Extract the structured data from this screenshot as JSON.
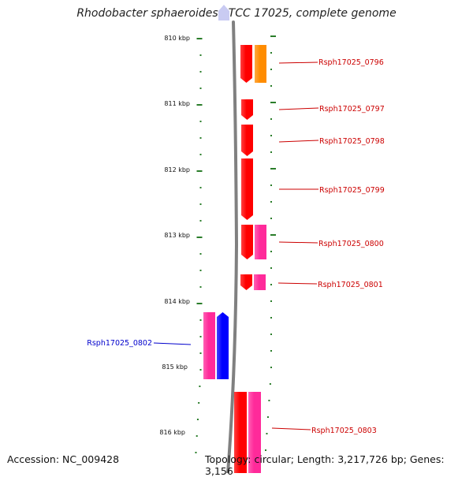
{
  "title": "Rhodobacter sphaeroides ATCC 17025, complete genome",
  "accession_text": "Accession: NC_009428",
  "topology_text": "Topology: circular; Length: 3,217,726 bp; Genes: 3,156",
  "colors": {
    "backbone": "#808080",
    "tick": "#2a7d2a",
    "label_red": "#cc0000",
    "label_blue": "#0000cc",
    "gene_red": "#ff0000",
    "gene_orange": "#ff8c00",
    "gene_pink": "#ff2a9a",
    "gene_blue": "#0000ff",
    "nav_arrow": "#c9cbf2"
  },
  "scale": {
    "unit": "kbp",
    "labels": [
      "810 kbp",
      "811 kbp",
      "812 kbp",
      "813 kbp",
      "814 kbp",
      "815 kbp",
      "816 kbp"
    ]
  },
  "genes": [
    {
      "name": "Rsph17025_0796",
      "color": "red"
    },
    {
      "name": "Rsph17025_0797",
      "color": "red"
    },
    {
      "name": "Rsph17025_0798",
      "color": "red"
    },
    {
      "name": "Rsph17025_0799",
      "color": "red"
    },
    {
      "name": "Rsph17025_0800",
      "color": "red"
    },
    {
      "name": "Rsph17025_0801",
      "color": "red"
    },
    {
      "name": "Rsph17025_0802",
      "color": "blue"
    },
    {
      "name": "Rsph17025_0803",
      "color": "red"
    }
  ]
}
